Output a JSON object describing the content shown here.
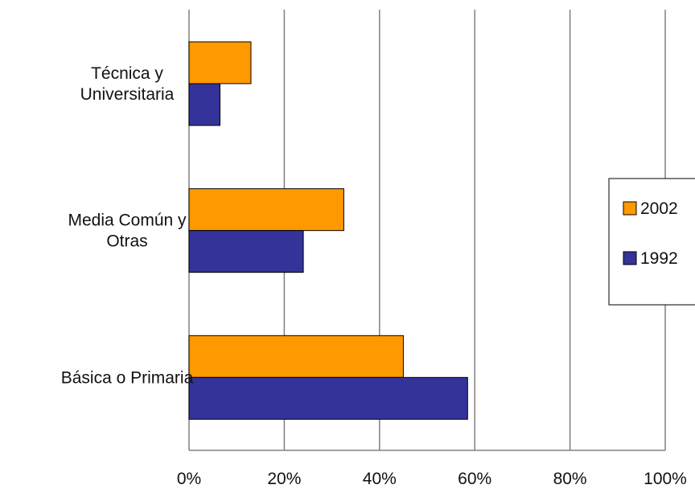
{
  "chart_data": {
    "type": "bar",
    "orientation": "horizontal",
    "categories": [
      [
        "Técnica y",
        "Universitaria"
      ],
      [
        "Media Común y",
        "Otras"
      ],
      [
        "Básica o Primaria"
      ]
    ],
    "series": [
      {
        "name": "2002",
        "color": "#FF9900",
        "values": [
          13,
          32.5,
          45
        ]
      },
      {
        "name": "1992",
        "color": "#333399",
        "values": [
          6.5,
          24,
          58.5
        ]
      }
    ],
    "xlim": [
      0,
      100
    ],
    "x_ticks": [
      "0%",
      "20%",
      "40%",
      "60%",
      "80%",
      "100%"
    ],
    "x_tick_values": [
      0,
      20,
      40,
      60,
      80,
      100
    ],
    "grid": "vertical",
    "legend_position": "right",
    "title": "",
    "xlabel": "",
    "ylabel": ""
  }
}
